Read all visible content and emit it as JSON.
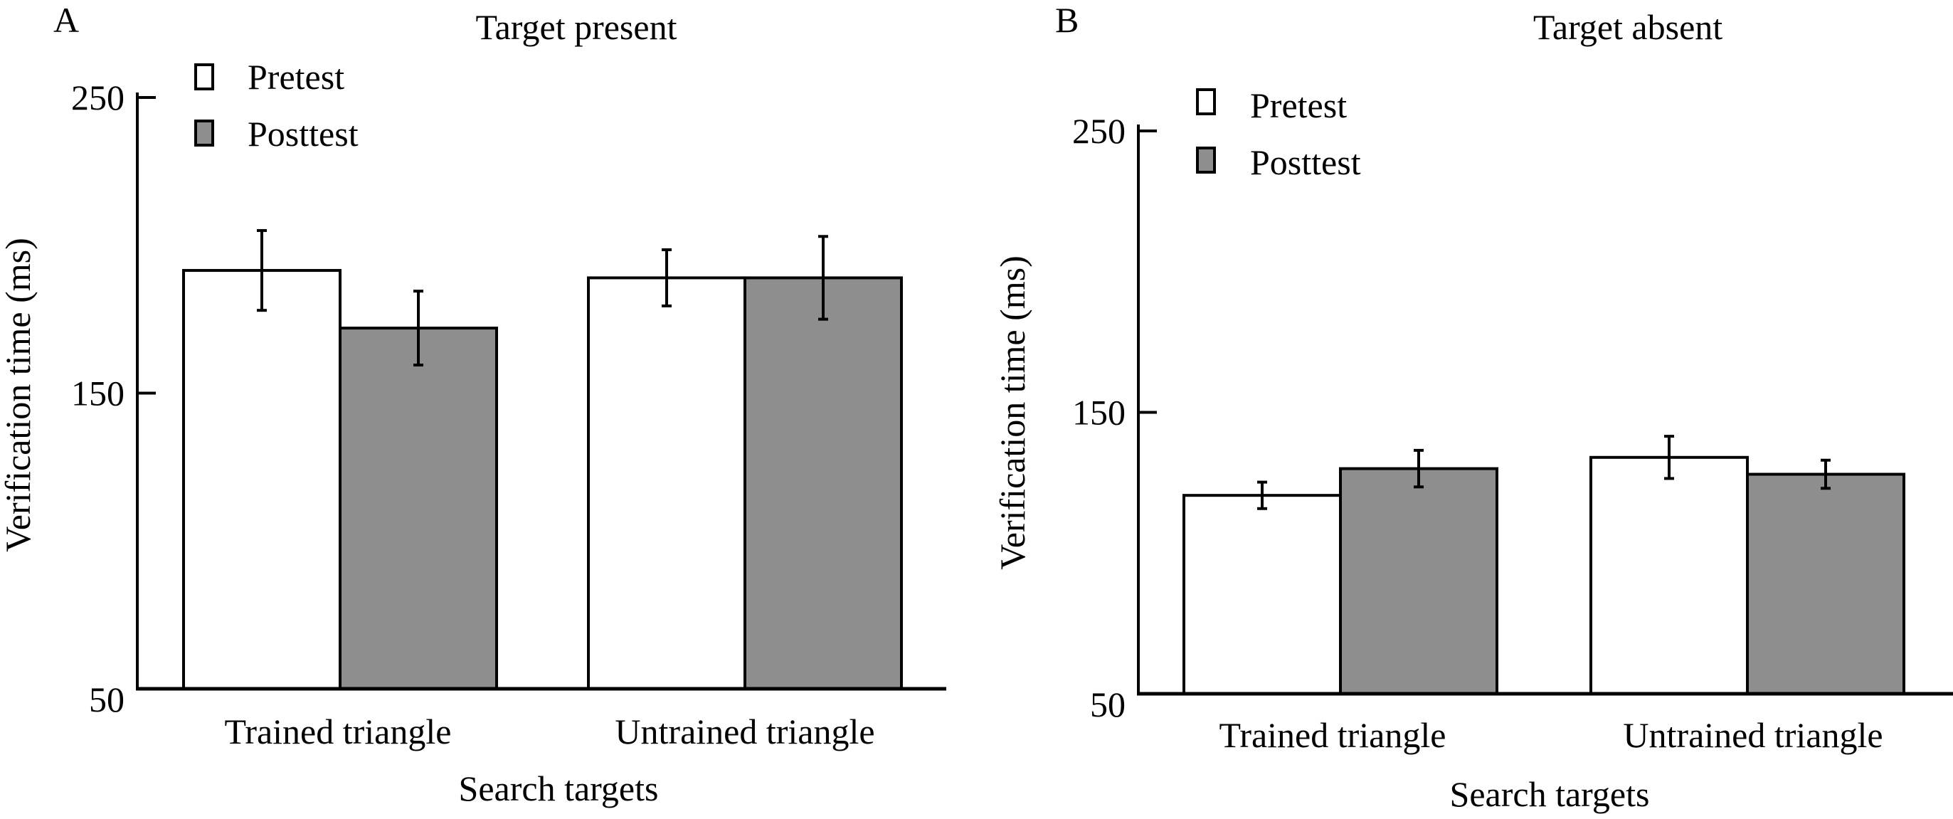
{
  "chart_data": [
    {
      "type": "bar",
      "panel_label": "A",
      "title": "Target present",
      "xlabel": "Search targets",
      "ylabel": "Verification time (ms)",
      "ylim": [
        50,
        250
      ],
      "yticks": [
        50,
        150,
        250
      ],
      "categories": [
        "Trained triangle",
        "Untrained triangle"
      ],
      "legend": {
        "placement": "top-left",
        "entries": [
          "Pretest",
          "Posttest"
        ]
      },
      "series": [
        {
          "name": "Pretest",
          "color": "#ffffff",
          "values": [
            191.5,
            189
          ],
          "errors": [
            13.5,
            9.5
          ]
        },
        {
          "name": "Posttest",
          "color": "#8e8e8e",
          "values": [
            172,
            189
          ],
          "errors": [
            12.5,
            14
          ]
        }
      ]
    },
    {
      "type": "bar",
      "panel_label": "B",
      "title": "Target absent",
      "xlabel": "Search targets",
      "ylabel": "Verification time (ms)",
      "ylim": [
        50,
        250
      ],
      "yticks": [
        50,
        150,
        250
      ],
      "categories": [
        "Trained triangle",
        "Untrained triangle"
      ],
      "legend": {
        "placement": "top-left",
        "entries": [
          "Pretest",
          "Posttest"
        ]
      },
      "series": [
        {
          "name": "Pretest",
          "color": "#ffffff",
          "values": [
            120.5,
            134
          ],
          "errors": [
            4.7,
            7.5
          ]
        },
        {
          "name": "Posttest",
          "color": "#8e8e8e",
          "values": [
            130,
            128
          ],
          "errors": [
            6.5,
            5
          ]
        }
      ]
    }
  ]
}
